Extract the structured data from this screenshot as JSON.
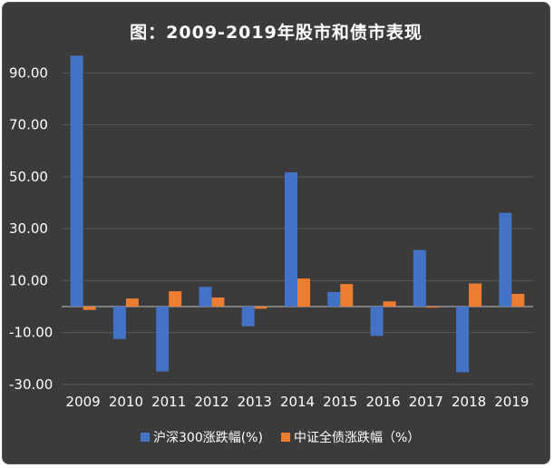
{
  "chart_data": {
    "type": "bar",
    "title": "图：2009-2019年股市和债市表现",
    "categories": [
      "2009",
      "2010",
      "2011",
      "2012",
      "2013",
      "2014",
      "2015",
      "2016",
      "2017",
      "2018",
      "2019"
    ],
    "series": [
      {
        "name": "沪深300涨跌幅(%)",
        "color": "#4472c4",
        "values": [
          96.7,
          -12.5,
          -25.0,
          7.6,
          -7.6,
          51.7,
          5.6,
          -11.3,
          21.8,
          -25.3,
          36.1
        ]
      },
      {
        "name": "中证全债涨跌幅（%）",
        "color": "#ed7d31",
        "values": [
          -1.3,
          3.1,
          5.9,
          3.5,
          -0.8,
          10.8,
          8.7,
          2.0,
          -0.4,
          8.9,
          4.9
        ]
      }
    ],
    "yticks": [
      "90.00",
      "70.00",
      "50.00",
      "30.00",
      "10.00",
      "-10.00",
      "-30.00"
    ],
    "ylim": [
      -30,
      96.7
    ],
    "grid": true,
    "legend_position": "bottom",
    "xlabel": "",
    "ylabel": ""
  }
}
